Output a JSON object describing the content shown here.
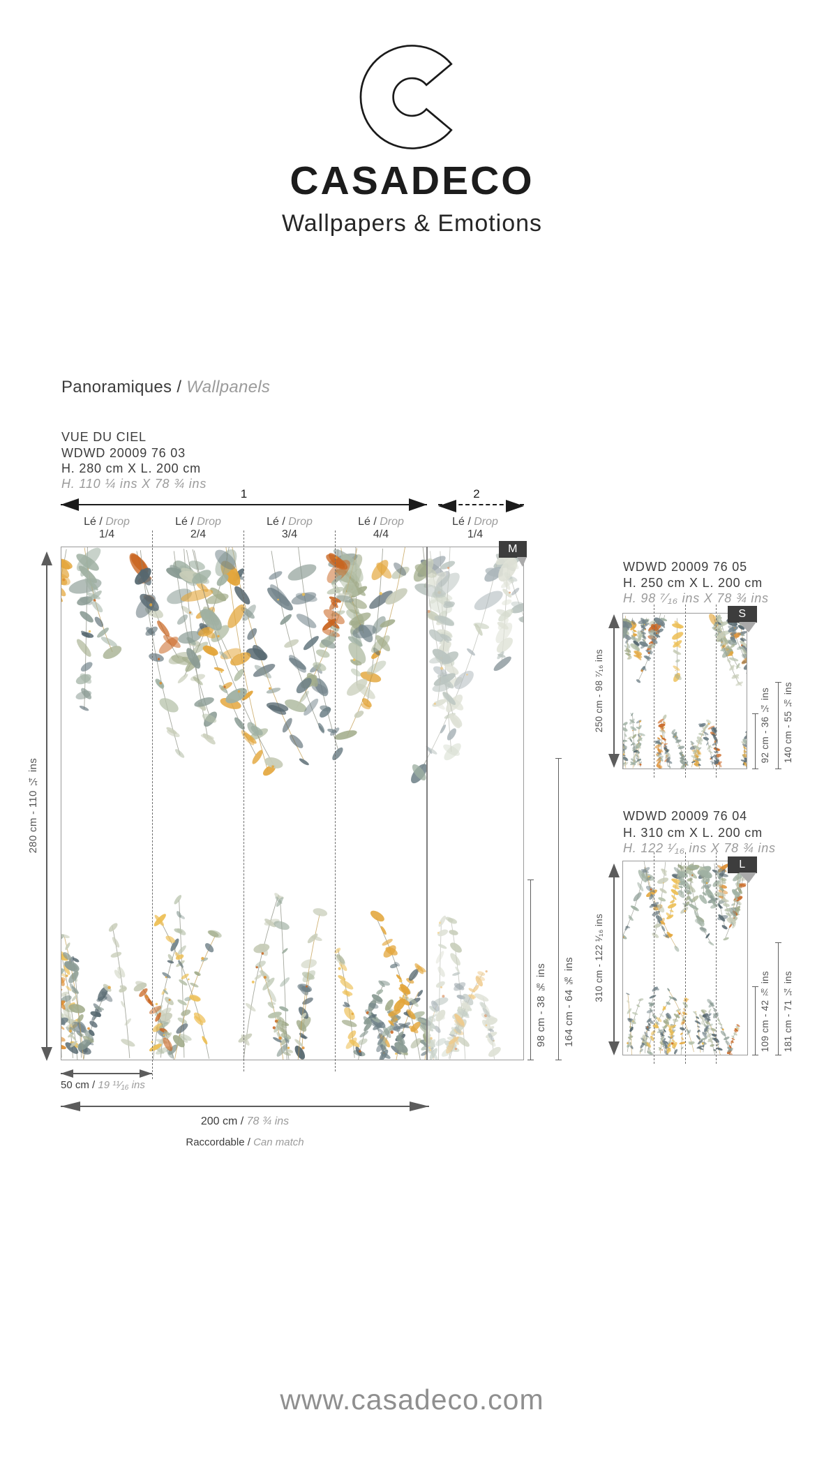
{
  "brand": {
    "logo_letter": "C",
    "name": "CASADECO",
    "tagline": "Wallpapers & Emotions"
  },
  "section": {
    "title_fr": "Panoramiques /",
    "title_en": "Wallpanels"
  },
  "main_product": {
    "name": "VUE DU CIEL",
    "reference": "WDWD 20009 76 03",
    "size_cm": "H. 280 cm X L. 200 cm",
    "size_ins": "H. 110 ¼ ins X 78 ¾ ins",
    "badge": "M",
    "panel_labels": {
      "p1": "1",
      "p2": "2"
    },
    "drops": [
      {
        "le": "Lé /",
        "drop": "Drop",
        "fraction": "1/4"
      },
      {
        "le": "Lé /",
        "drop": "Drop",
        "fraction": "2/4"
      },
      {
        "le": "Lé /",
        "drop": "Drop",
        "fraction": "3/4"
      },
      {
        "le": "Lé /",
        "drop": "Drop",
        "fraction": "4/4"
      },
      {
        "le": "Lé /",
        "drop": "Drop",
        "fraction": "1/4"
      }
    ],
    "height_label": "280 cm - 110 ¼ ins",
    "dim_inner": "98 cm - 38 ⅝ ins",
    "dim_outer": "164 cm - 64 ⅝ ins",
    "width_drop_cm": "50 cm /",
    "width_drop_ins": "19 ¹¹⁄₁₆ ins",
    "width_total_cm": "200 cm /",
    "width_total_ins": "78 ¾ ins",
    "match_fr": "Raccordable /",
    "match_en": "Can match"
  },
  "product_s": {
    "reference": "WDWD 20009 76 05",
    "size_cm": "H. 250 cm X L. 200 cm",
    "size_ins": "H. 98 ⁷⁄₁₆ ins X 78 ¾ ins",
    "badge": "S",
    "height_label": "250 cm - 98 ⁷⁄₁₆ ins",
    "dim_inner": "92 cm - 36 ¼ ins",
    "dim_outer": "140 cm - 55 ⅛ ins"
  },
  "product_l": {
    "reference": "WDWD 20009 76 04",
    "size_cm": "H. 310 cm X L. 200 cm",
    "size_ins": "H. 122 ¹⁄₁₆ ins X 78 ¾ ins",
    "badge": "L",
    "height_label": "310 cm - 122 ¹⁄₁₆ ins",
    "dim_inner": "109 cm - 42 ⅞ ins",
    "dim_outer": "181 cm - 71 ¼ ins"
  },
  "footer": {
    "website": "www.casadeco.com"
  },
  "colors": {
    "badge_bg": "#3d3d3d",
    "text_dark": "#3c3c3c",
    "text_gray": "#9b9b9b",
    "arrow_black": "#1b1b1b",
    "arrow_gray": "#5c5c5c",
    "frame_border": "#9a9a9a",
    "foliage_greens": [
      "#b7c2ab",
      "#9fb0a2",
      "#8a9b94",
      "#6e8087",
      "#55676f",
      "#c8cdb9",
      "#a3ad8c"
    ],
    "foliage_accents": [
      "#e3a63b",
      "#dd8c2e",
      "#c9641f",
      "#edbf55"
    ]
  }
}
